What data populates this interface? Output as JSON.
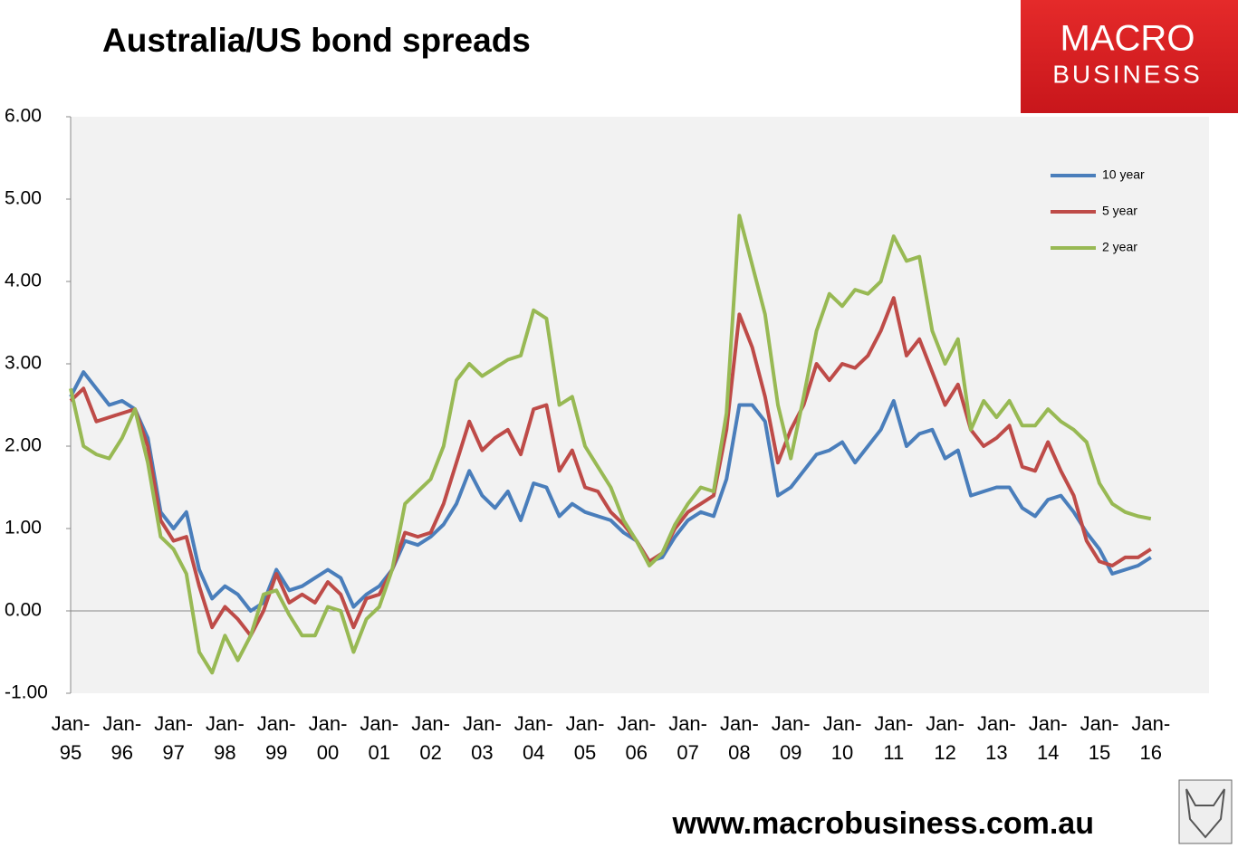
{
  "chart_data": {
    "type": "line",
    "title": "Australia/US bond spreads",
    "categories": [
      "Jan-95",
      null,
      null,
      null,
      "Jan-96",
      null,
      null,
      null,
      "Jan-97",
      null,
      null,
      null,
      "Jan-98",
      null,
      null,
      null,
      "Jan-99",
      null,
      null,
      null,
      "Jan-00",
      null,
      null,
      null,
      "Jan-01",
      null,
      null,
      null,
      "Jan-02",
      null,
      null,
      null,
      "Jan-03",
      null,
      null,
      null,
      "Jan-04",
      null,
      null,
      null,
      "Jan-05",
      null,
      null,
      null,
      "Jan-06",
      null,
      null,
      null,
      "Jan-07",
      null,
      null,
      null,
      "Jan-08",
      null,
      null,
      null,
      "Jan-09",
      null,
      null,
      null,
      "Jan-10",
      null,
      null,
      null,
      "Jan-11",
      null,
      null,
      null,
      "Jan-12",
      null,
      null,
      null,
      "Jan-13",
      null,
      null,
      null,
      "Jan-14",
      null,
      null,
      null,
      "Jan-15",
      null,
      null,
      null,
      "Jan-16"
    ],
    "series": [
      {
        "name": "10 year",
        "color": "#4a7ebb",
        "values": [
          2.6,
          2.9,
          2.7,
          2.5,
          2.55,
          2.45,
          2.1,
          1.2,
          1.0,
          1.2,
          0.5,
          0.15,
          0.3,
          0.2,
          0.0,
          0.1,
          0.5,
          0.25,
          0.3,
          0.4,
          0.5,
          0.4,
          0.05,
          0.2,
          0.3,
          0.5,
          0.85,
          0.8,
          0.9,
          1.05,
          1.3,
          1.7,
          1.4,
          1.25,
          1.45,
          1.1,
          1.55,
          1.5,
          1.15,
          1.3,
          1.2,
          1.15,
          1.1,
          0.95,
          0.85,
          0.6,
          0.65,
          0.9,
          1.1,
          1.2,
          1.15,
          1.6,
          2.5,
          2.5,
          2.3,
          1.4,
          1.5,
          1.7,
          1.9,
          1.95,
          2.05,
          1.8,
          2.0,
          2.2,
          2.55,
          2.0,
          2.15,
          2.2,
          1.85,
          1.95,
          1.4,
          1.45,
          1.5,
          1.5,
          1.25,
          1.15,
          1.35,
          1.4,
          1.2,
          0.95,
          0.75,
          0.45,
          0.5,
          0.55,
          0.65
        ]
      },
      {
        "name": "5 year",
        "color": "#be4b48",
        "values": [
          2.55,
          2.7,
          2.3,
          2.35,
          2.4,
          2.45,
          2.0,
          1.1,
          0.85,
          0.9,
          0.3,
          -0.2,
          0.05,
          -0.1,
          -0.3,
          0.0,
          0.45,
          0.1,
          0.2,
          0.1,
          0.35,
          0.2,
          -0.2,
          0.15,
          0.2,
          0.5,
          0.95,
          0.9,
          0.95,
          1.3,
          1.8,
          2.3,
          1.95,
          2.1,
          2.2,
          1.9,
          2.45,
          2.5,
          1.7,
          1.95,
          1.5,
          1.45,
          1.2,
          1.05,
          0.85,
          0.6,
          0.7,
          1.0,
          1.2,
          1.3,
          1.4,
          2.2,
          3.6,
          3.2,
          2.6,
          1.8,
          2.2,
          2.5,
          3.0,
          2.8,
          3.0,
          2.95,
          3.1,
          3.4,
          3.8,
          3.1,
          3.3,
          2.9,
          2.5,
          2.75,
          2.2,
          2.0,
          2.1,
          2.25,
          1.75,
          1.7,
          2.05,
          1.7,
          1.4,
          0.85,
          0.6,
          0.55,
          0.65,
          0.65,
          0.75
        ]
      },
      {
        "name": "2 year",
        "color": "#98b954",
        "values": [
          2.7,
          2.0,
          1.9,
          1.85,
          2.1,
          2.45,
          1.8,
          0.9,
          0.75,
          0.45,
          -0.5,
          -0.75,
          -0.3,
          -0.6,
          -0.3,
          0.2,
          0.25,
          -0.05,
          -0.3,
          -0.3,
          0.05,
          0.0,
          -0.5,
          -0.1,
          0.05,
          0.5,
          1.3,
          1.45,
          1.6,
          2.0,
          2.8,
          3.0,
          2.85,
          2.95,
          3.05,
          3.1,
          3.65,
          3.55,
          2.5,
          2.6,
          2.0,
          1.75,
          1.5,
          1.1,
          0.85,
          0.55,
          0.7,
          1.05,
          1.3,
          1.5,
          1.45,
          2.4,
          4.8,
          4.2,
          3.6,
          2.5,
          1.85,
          2.6,
          3.4,
          3.85,
          3.7,
          3.9,
          3.85,
          4.0,
          4.55,
          4.25,
          4.3,
          3.4,
          3.0,
          3.3,
          2.2,
          2.55,
          2.35,
          2.55,
          2.25,
          2.25,
          2.45,
          2.3,
          2.2,
          2.05,
          1.55,
          1.3,
          1.2,
          1.15,
          1.12
        ]
      }
    ],
    "ylim": [
      -1,
      6
    ],
    "yticks": [
      {
        "value": -1,
        "label": "-1.00"
      },
      {
        "value": 0,
        "label": "0.00"
      },
      {
        "value": 1,
        "label": "1.00"
      },
      {
        "value": 2,
        "label": "2.00"
      },
      {
        "value": 3,
        "label": "3.00"
      },
      {
        "value": 4,
        "label": "4.00"
      },
      {
        "value": 5,
        "label": "5.00"
      },
      {
        "value": 6,
        "label": "6.00"
      }
    ],
    "legend": "upper right",
    "grid": false
  },
  "logo": {
    "line1": "MACRO",
    "line2": "BUSINESS"
  },
  "footer": "www.macrobusiness.com.au"
}
